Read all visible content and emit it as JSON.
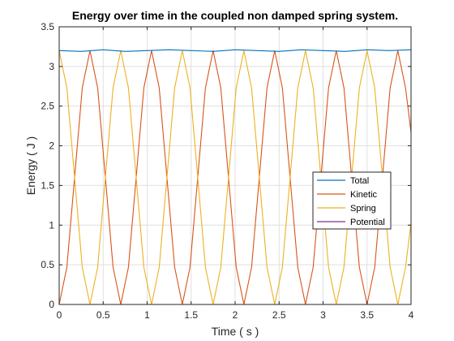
{
  "chart_data": {
    "type": "line",
    "title": "Energy over time in the coupled non damped spring system.",
    "xlabel": "Time ( s )",
    "ylabel": "Energy ( J )",
    "xlim": [
      0,
      4
    ],
    "ylim": [
      0,
      3.5
    ],
    "xticks": [
      0,
      0.5,
      1,
      1.5,
      2,
      2.5,
      3,
      3.5,
      4
    ],
    "xtick_labels": [
      "0",
      "0.5",
      "1",
      "1.5",
      "2",
      "2.5",
      "3",
      "3.5",
      "4"
    ],
    "yticks": [
      0,
      0.5,
      1,
      1.5,
      2,
      2.5,
      3,
      3.5
    ],
    "ytick_labels": [
      "0",
      "0.5",
      "1",
      "1.5",
      "2",
      "2.5",
      "3",
      "3.5"
    ],
    "grid": true,
    "legend_position": "right",
    "series": [
      {
        "name": "Total",
        "color": "#0072BD",
        "x": [
          0,
          0.25,
          0.5,
          0.75,
          1,
          1.25,
          1.5,
          1.75,
          2,
          2.25,
          2.5,
          2.75,
          3,
          3.25,
          3.5,
          3.75,
          4
        ],
        "y": [
          3.2,
          3.19,
          3.21,
          3.19,
          3.2,
          3.21,
          3.2,
          3.19,
          3.21,
          3.2,
          3.19,
          3.21,
          3.2,
          3.19,
          3.21,
          3.2,
          3.21
        ]
      },
      {
        "name": "Kinetic",
        "color": "#D95319",
        "x": [
          0,
          0.0875,
          0.175,
          0.2625,
          0.35,
          0.4375,
          0.525,
          0.6125,
          0.7,
          0.7875,
          0.875,
          0.9625,
          1.05,
          1.1375,
          1.225,
          1.3125,
          1.4,
          1.4875,
          1.575,
          1.6625,
          1.75,
          1.8375,
          1.925,
          2.0125,
          2.1,
          2.1875,
          2.275,
          2.3625,
          2.45,
          2.5375,
          2.625,
          2.7125,
          2.8,
          2.8875,
          2.975,
          3.0625,
          3.15,
          3.2375,
          3.325,
          3.4125,
          3.5,
          3.5875,
          3.675,
          3.7625,
          3.85,
          3.9375,
          4.0
        ],
        "y": [
          0,
          0.47,
          1.6,
          2.73,
          3.2,
          2.73,
          1.6,
          0.47,
          0,
          0.47,
          1.6,
          2.73,
          3.2,
          2.73,
          1.6,
          0.47,
          0,
          0.47,
          1.6,
          2.73,
          3.2,
          2.73,
          1.6,
          0.47,
          0,
          0.47,
          1.6,
          2.73,
          3.2,
          2.73,
          1.6,
          0.47,
          0,
          0.47,
          1.6,
          2.73,
          3.2,
          2.73,
          1.6,
          0.47,
          0,
          0.47,
          1.6,
          2.73,
          3.2,
          2.73,
          2.17
        ]
      },
      {
        "name": "Spring",
        "color": "#EDB120",
        "x": [
          0,
          0.0875,
          0.175,
          0.2625,
          0.35,
          0.4375,
          0.525,
          0.6125,
          0.7,
          0.7875,
          0.875,
          0.9625,
          1.05,
          1.1375,
          1.225,
          1.3125,
          1.4,
          1.4875,
          1.575,
          1.6625,
          1.75,
          1.8375,
          1.925,
          2.0125,
          2.1,
          2.1875,
          2.275,
          2.3625,
          2.45,
          2.5375,
          2.625,
          2.7125,
          2.8,
          2.8875,
          2.975,
          3.0625,
          3.15,
          3.2375,
          3.325,
          3.4125,
          3.5,
          3.5875,
          3.675,
          3.7625,
          3.85,
          3.9375,
          4.0
        ],
        "y": [
          3.2,
          2.73,
          1.6,
          0.47,
          0,
          0.47,
          1.6,
          2.73,
          3.2,
          2.73,
          1.6,
          0.47,
          0,
          0.47,
          1.6,
          2.73,
          3.2,
          2.73,
          1.6,
          0.47,
          0,
          0.47,
          1.6,
          2.73,
          3.2,
          2.73,
          1.6,
          0.47,
          0,
          0.47,
          1.6,
          2.73,
          3.2,
          2.73,
          1.6,
          0.47,
          0,
          0.47,
          1.6,
          2.73,
          3.2,
          2.73,
          1.6,
          0.47,
          0,
          0.47,
          1.03
        ]
      },
      {
        "name": "Potential",
        "color": "#7E2F8E",
        "x": [
          0,
          4
        ],
        "y": [
          0,
          0
        ]
      }
    ]
  }
}
